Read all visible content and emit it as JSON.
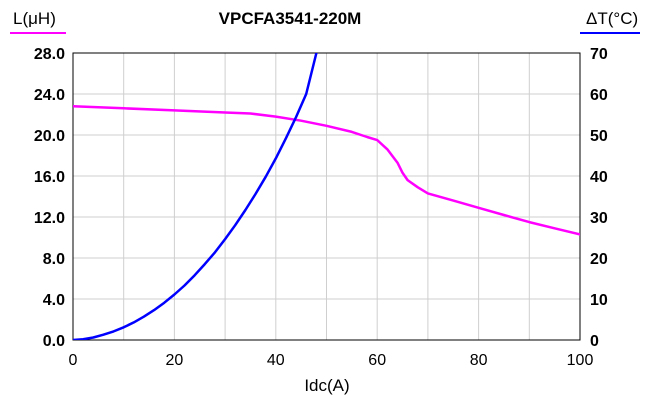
{
  "chart_data": {
    "type": "line",
    "title": "VPCFA3541-220M",
    "xlabel": "Idc(A)",
    "ylabel_left": "L(μH)",
    "ylabel_right": "ΔT(°C)",
    "xlim": [
      0,
      100
    ],
    "ylim_left": [
      0,
      28
    ],
    "ylim_right": [
      0,
      70
    ],
    "x_ticks": [
      "0",
      "20",
      "40",
      "60",
      "80",
      "100"
    ],
    "y_left_ticks": [
      "0.0",
      "4.0",
      "8.0",
      "12.0",
      "16.0",
      "20.0",
      "24.0",
      "28.0"
    ],
    "y_right_ticks": [
      "0",
      "10",
      "20",
      "30",
      "40",
      "50",
      "60",
      "70"
    ],
    "grid": true,
    "series": [
      {
        "axis": "left",
        "color": "#ff00ff",
        "x": [
          0,
          10,
          20,
          30,
          35,
          40,
          45,
          50,
          55,
          58,
          60,
          62,
          64,
          65,
          66,
          68,
          70,
          75,
          80,
          85,
          90,
          95,
          100
        ],
        "values": [
          22.8,
          22.6,
          22.4,
          22.2,
          22.1,
          21.8,
          21.4,
          20.9,
          20.3,
          19.8,
          19.5,
          18.6,
          17.3,
          16.3,
          15.6,
          14.9,
          14.3,
          13.6,
          12.9,
          12.2,
          11.5,
          10.9,
          10.3
        ]
      },
      {
        "axis": "right",
        "color": "#0000ff",
        "x": [
          0,
          2,
          4,
          6,
          8,
          10,
          12,
          14,
          16,
          18,
          20,
          22,
          24,
          26,
          28,
          30,
          32,
          34,
          36,
          38,
          40,
          42,
          44,
          46,
          48
        ],
        "values": [
          0,
          0.2,
          0.6,
          1.3,
          2.1,
          3.1,
          4.3,
          5.7,
          7.3,
          9.1,
          11.1,
          13.3,
          15.8,
          18.5,
          21.4,
          24.6,
          28.0,
          31.7,
          35.6,
          39.8,
          44.3,
          49.2,
          54.4,
          60.0,
          70.0
        ]
      }
    ]
  }
}
